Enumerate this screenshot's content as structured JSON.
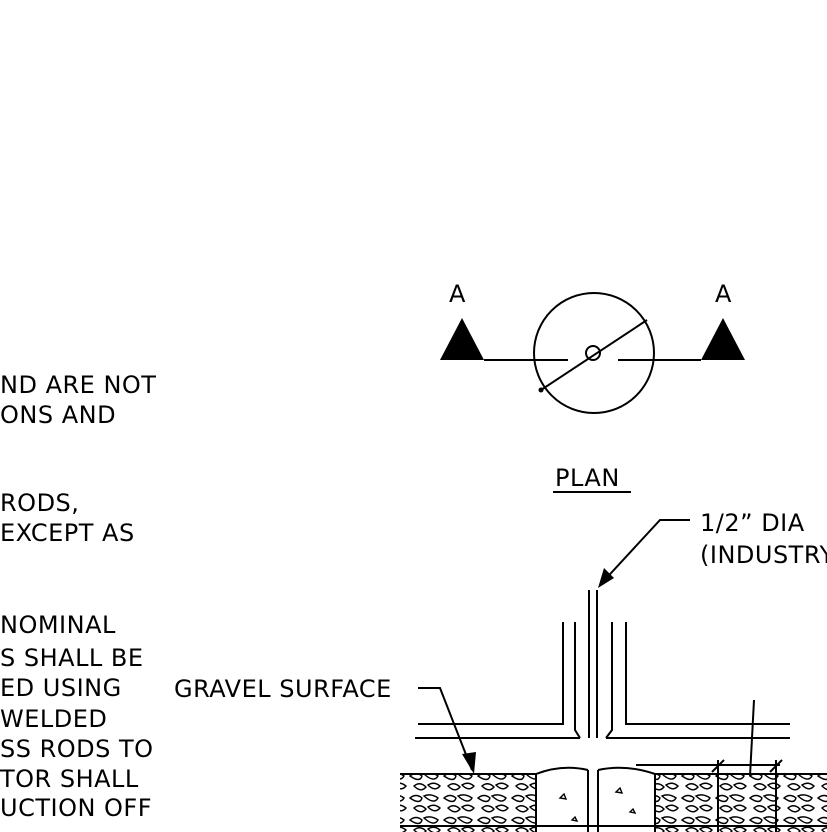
{
  "notes": {
    "lines": [
      "ND ARE NOT",
      "ONS AND",
      " RODS,",
      "EXCEPT AS",
      "NOMINAL",
      "S SHALL BE",
      "ED USING",
      " WELDED",
      "SS RODS TO",
      "TOR SHALL",
      "UCTION OFF"
    ]
  },
  "plan": {
    "section_marker_left": "A",
    "section_marker_right": "A",
    "title": "PLAN"
  },
  "section": {
    "label_rod_line1": "1/2” DIA",
    "label_rod_line2": "(INDUSTRY",
    "label_gravel": "GRAVEL SURFACE"
  }
}
